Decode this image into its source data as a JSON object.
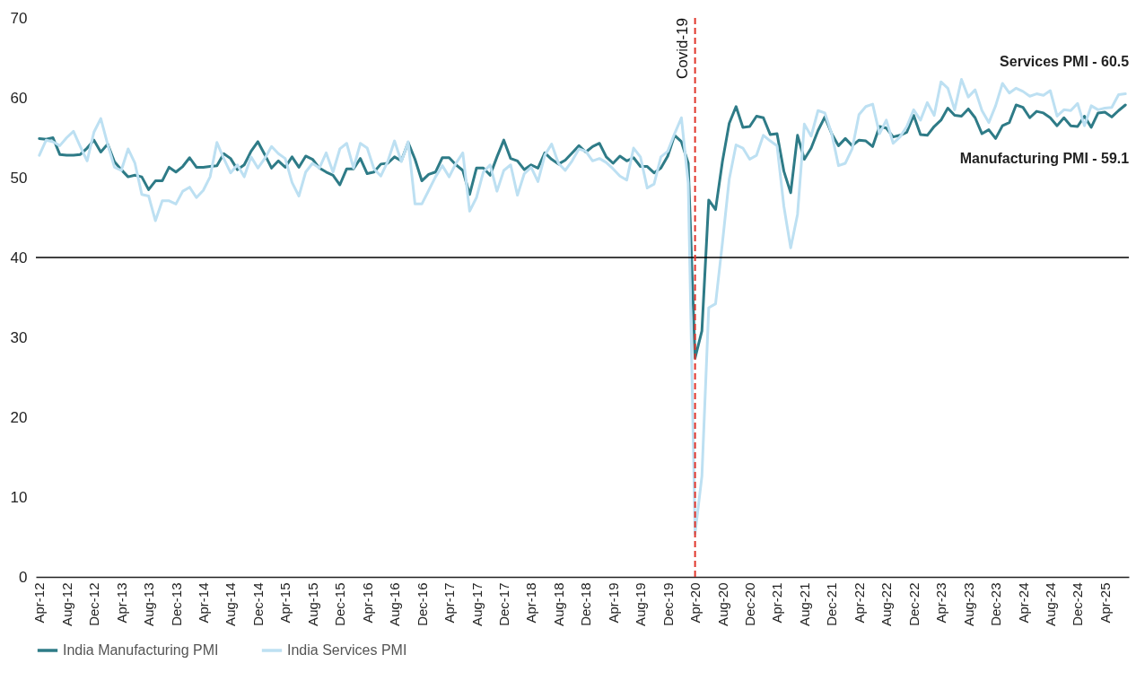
{
  "chart_data": {
    "type": "line",
    "categories": [
      "Apr-12",
      null,
      null,
      null,
      "Aug-12",
      null,
      null,
      null,
      "Dec-12",
      null,
      null,
      null,
      "Apr-13",
      null,
      null,
      null,
      "Aug-13",
      null,
      null,
      null,
      "Dec-13",
      null,
      null,
      null,
      "Apr-14",
      null,
      null,
      null,
      "Aug-14",
      null,
      null,
      null,
      "Dec-14",
      null,
      null,
      null,
      "Apr-15",
      null,
      null,
      null,
      "Aug-15",
      null,
      null,
      null,
      "Dec-15",
      null,
      null,
      null,
      "Apr-16",
      null,
      null,
      null,
      "Aug-16",
      null,
      null,
      null,
      "Dec-16",
      null,
      null,
      null,
      "Apr-17",
      null,
      null,
      null,
      "Aug-17",
      null,
      null,
      null,
      "Dec-17",
      null,
      null,
      null,
      "Apr-18",
      null,
      null,
      null,
      "Aug-18",
      null,
      null,
      null,
      "Dec-18",
      null,
      null,
      null,
      "Apr-19",
      null,
      null,
      null,
      "Aug-19",
      null,
      null,
      null,
      "Dec-19",
      null,
      null,
      null,
      "Apr-20",
      null,
      null,
      null,
      "Aug-20",
      null,
      null,
      null,
      "Dec-20",
      null,
      null,
      null,
      "Apr-21",
      null,
      null,
      null,
      "Aug-21",
      null,
      null,
      null,
      "Dec-21",
      null,
      null,
      null,
      "Apr-22",
      null,
      null,
      null,
      "Aug-22",
      null,
      null,
      null,
      "Dec-22",
      null,
      null,
      null,
      "Apr-23",
      null,
      null,
      null,
      "Aug-23",
      null,
      null,
      null,
      "Dec-23",
      null,
      null,
      null,
      "Apr-24",
      null,
      null,
      null,
      "Aug-24",
      null,
      null,
      null,
      "Dec-24",
      null,
      null,
      null,
      "Apr-25",
      null,
      null,
      null
    ],
    "series": [
      {
        "name": "India Manufacturing PMI",
        "color": "#2e7b87",
        "values": [
          54.9,
          54.8,
          55.0,
          52.9,
          52.8,
          52.8,
          52.9,
          53.7,
          54.7,
          53.2,
          54.2,
          52.0,
          51.0,
          50.1,
          50.3,
          50.1,
          48.5,
          49.6,
          49.6,
          51.3,
          50.7,
          51.4,
          52.5,
          51.3,
          51.3,
          51.4,
          51.5,
          53.0,
          52.4,
          51.0,
          51.6,
          53.3,
          54.5,
          52.9,
          51.2,
          52.1,
          51.3,
          52.6,
          51.3,
          52.7,
          52.3,
          51.2,
          50.7,
          50.3,
          49.1,
          51.1,
          51.1,
          52.4,
          50.5,
          50.7,
          51.7,
          51.8,
          52.6,
          52.1,
          54.4,
          52.3,
          49.6,
          50.4,
          50.7,
          52.5,
          52.5,
          51.6,
          50.9,
          47.9,
          51.2,
          51.2,
          50.3,
          52.6,
          54.7,
          52.4,
          52.1,
          51.0,
          51.6,
          51.2,
          53.1,
          52.3,
          51.7,
          52.2,
          53.1,
          54.0,
          53.2,
          53.9,
          54.3,
          52.6,
          51.8,
          52.7,
          52.1,
          52.5,
          51.4,
          51.4,
          50.6,
          51.2,
          52.7,
          55.3,
          54.5,
          51.8,
          27.4,
          30.8,
          47.2,
          46.0,
          52.0,
          56.8,
          58.9,
          56.3,
          56.4,
          57.7,
          57.5,
          55.4,
          55.5,
          50.8,
          48.1,
          55.3,
          52.3,
          53.7,
          55.9,
          57.6,
          55.5,
          54.0,
          54.9,
          54.0,
          54.7,
          54.6,
          53.9,
          56.4,
          56.2,
          55.1,
          55.3,
          55.7,
          57.8,
          55.4,
          55.3,
          56.4,
          57.2,
          58.7,
          57.8,
          57.7,
          58.6,
          57.5,
          55.5,
          56.0,
          54.9,
          56.5,
          56.9,
          59.1,
          58.8,
          57.5,
          58.3,
          58.1,
          57.5,
          56.5,
          57.5,
          56.5,
          56.4,
          57.7,
          56.3,
          58.1,
          58.2,
          57.6,
          58.4,
          59.1
        ]
      },
      {
        "name": "India Services PMI",
        "color": "#bde0f2",
        "values": [
          52.8,
          54.7,
          54.5,
          54.0,
          55.0,
          55.8,
          53.9,
          52.1,
          55.7,
          57.4,
          54.2,
          51.3,
          50.9,
          53.6,
          51.8,
          47.9,
          47.7,
          44.6,
          47.1,
          47.1,
          46.7,
          48.3,
          48.8,
          47.5,
          48.4,
          50.1,
          54.4,
          52.4,
          50.6,
          51.6,
          50.1,
          52.6,
          51.2,
          52.4,
          53.9,
          53.0,
          52.4,
          49.4,
          47.7,
          50.7,
          51.8,
          51.2,
          53.1,
          50.7,
          53.6,
          54.3,
          51.2,
          54.3,
          53.7,
          51.1,
          50.2,
          52.0,
          54.6,
          52.0,
          54.5,
          46.7,
          46.7,
          48.4,
          50.1,
          51.5,
          50.1,
          51.8,
          53.1,
          45.8,
          47.5,
          50.7,
          51.6,
          48.3,
          50.9,
          51.6,
          47.8,
          50.5,
          51.3,
          49.5,
          52.8,
          54.2,
          51.8,
          50.9,
          52.1,
          53.6,
          53.3,
          52.1,
          52.4,
          51.9,
          51.1,
          50.2,
          49.7,
          53.7,
          52.6,
          48.7,
          49.2,
          52.6,
          53.3,
          55.5,
          57.5,
          49.3,
          5.4,
          12.6,
          33.7,
          34.2,
          41.8,
          49.8,
          54.1,
          53.7,
          52.3,
          52.8,
          55.3,
          54.6,
          54.0,
          46.4,
          41.2,
          45.4,
          56.7,
          55.2,
          58.4,
          58.1,
          55.5,
          51.5,
          51.8,
          53.6,
          57.9,
          58.9,
          59.2,
          55.5,
          57.2,
          54.3,
          55.1,
          56.4,
          58.5,
          57.2,
          59.4,
          57.8,
          62.0,
          61.2,
          58.5,
          62.3,
          60.1,
          61.0,
          58.4,
          56.9,
          59.0,
          61.8,
          60.6,
          61.2,
          60.8,
          60.2,
          60.5,
          60.3,
          60.9,
          57.7,
          58.5,
          58.4,
          59.3,
          56.5,
          59.0,
          58.5,
          58.7,
          58.8,
          60.4,
          60.5
        ]
      }
    ],
    "ylim": [
      0,
      70
    ],
    "yticks": [
      0,
      10,
      20,
      30,
      40,
      50,
      60,
      70
    ],
    "ref_lines": [
      {
        "axis": "y",
        "value": 40,
        "color": "#000000",
        "line_style": "solid"
      },
      {
        "axis": "x",
        "value": "Apr-20",
        "label": "Covid-19",
        "color": "#e0352b",
        "line_style": "dashed"
      }
    ],
    "annotations": [
      "Services PMI - 60.5",
      "Manufacturing PMI - 59.1"
    ],
    "legend": "bottom",
    "grid": false,
    "line_style": "solid",
    "marker": "none"
  }
}
